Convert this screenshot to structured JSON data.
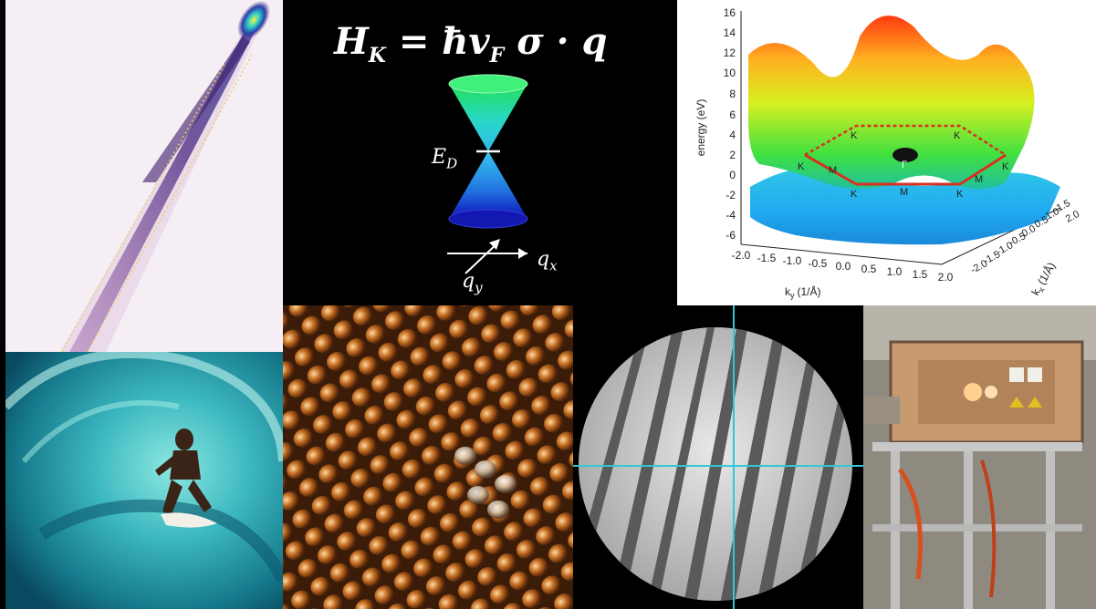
{
  "equation": {
    "H": "H",
    "K_sub": "K",
    "rhs": "= ħv",
    "F_sub": "F",
    "tail": "σ · q"
  },
  "cone_labels": {
    "ED_E": "E",
    "ED_sub": "D",
    "qx_q": "q",
    "qx_sub": "x",
    "qy_q": "q",
    "qy_sub": "y"
  },
  "band_plot": {
    "ylabel": "energy (eV)",
    "xlabel": "k",
    "xlabel_sub": "y",
    "xlabel_unit": "(1/Å)",
    "zlabel": "k",
    "zlabel_sub": "x",
    "zlabel_unit": "(1/Å)",
    "yticks": [
      "16",
      "14",
      "12",
      "10",
      "8",
      "6",
      "4",
      "2",
      "0",
      "-2",
      "-4",
      "-6"
    ],
    "xticks": [
      "-2.0",
      "-1.5",
      "-1.0",
      "-0.5",
      "0.0",
      "0.5",
      "1.0",
      "1.5",
      "2.0"
    ],
    "zticks": [
      "-2.0",
      "-1.5",
      "-1.0",
      "-0.5",
      "0.0",
      "0.5",
      "1.0",
      "1.5",
      "2.0"
    ],
    "points": {
      "K1": "K",
      "K2": "K",
      "K3": "K",
      "K4": "K",
      "K5": "K",
      "K6": "K",
      "M1": "M",
      "M2": "M",
      "M3": "M",
      "G": "Γ"
    }
  },
  "colors": {
    "cyan_cross": "#2ec8d8",
    "cone_top": "#1fe36a",
    "cone_bottom": "#1020c8"
  }
}
